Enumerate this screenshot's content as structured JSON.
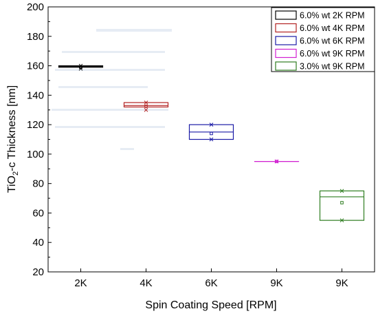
{
  "chart_data": {
    "type": "box",
    "xlabel": "Spin Coating Speed [RPM]",
    "ylabel_main": "TiO",
    "ylabel_sub": "2",
    "ylabel_rest": "-c Thickness [nm]",
    "ylim": [
      20,
      200
    ],
    "yticks": [
      20,
      40,
      60,
      80,
      100,
      120,
      140,
      160,
      180,
      200
    ],
    "categories": [
      "2K",
      "4K",
      "6K",
      "9K",
      "9K"
    ],
    "legend_position": "top-right",
    "series": [
      {
        "name": "6.0% wt 2K RPM",
        "color": "#000000",
        "q1": 159,
        "median": 159.5,
        "q3": 160,
        "min": 158,
        "max": 160,
        "mean": 159
      },
      {
        "name": "6.0% wt 4K RPM",
        "color": "#b22222",
        "q1": 132,
        "median": 133,
        "q3": 135,
        "min": 130,
        "max": 135,
        "mean": 132.5
      },
      {
        "name": "6.0% wt 6K RPM",
        "color": "#1a1aa6",
        "q1": 110,
        "median": 115,
        "q3": 120,
        "min": 110,
        "max": 120,
        "mean": 114
      },
      {
        "name": "6.0% wt 9K RPM",
        "color": "#d11fd1",
        "q1": 95,
        "median": 95,
        "q3": 95,
        "min": 95,
        "max": 95,
        "mean": 95
      },
      {
        "name": "3.0% wt 9K RPM",
        "color": "#2e7d20",
        "q1": 55,
        "median": 71,
        "q3": 75,
        "min": 55,
        "max": 75,
        "mean": 67
      }
    ]
  }
}
